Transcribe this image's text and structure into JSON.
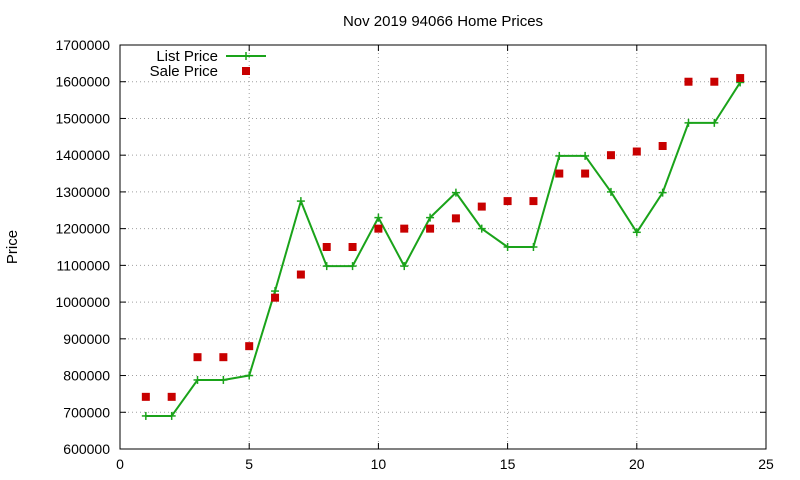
{
  "chart_data": {
    "type": "line",
    "title": "Nov 2019 94066 Home Prices",
    "xlabel": "",
    "ylabel": "Price",
    "xlim": [
      0,
      25
    ],
    "ylim": [
      600000,
      1700000
    ],
    "xticks": [
      0,
      5,
      10,
      15,
      20,
      25
    ],
    "yticks": [
      600000,
      700000,
      800000,
      900000,
      1000000,
      1100000,
      1200000,
      1300000,
      1400000,
      1500000,
      1600000,
      1700000
    ],
    "grid": true,
    "legend_position": "top-left",
    "series": [
      {
        "name": "List Price",
        "style": "line+cross",
        "color": "#1aa31a",
        "x": [
          1,
          2,
          3,
          4,
          5,
          6,
          7,
          8,
          9,
          10,
          11,
          12,
          13,
          14,
          15,
          16,
          17,
          18,
          19,
          20,
          21,
          22,
          23,
          24
        ],
        "values": [
          690000,
          690000,
          788000,
          788000,
          800000,
          1030000,
          1275000,
          1098000,
          1098000,
          1230000,
          1098000,
          1230000,
          1298000,
          1200000,
          1150000,
          1150000,
          1398000,
          1398000,
          1300000,
          1190000,
          1298000,
          1488000,
          1488000,
          1598000
        ]
      },
      {
        "name": "Sale Price",
        "style": "square-markers",
        "color": "#c80000",
        "x": [
          1,
          2,
          3,
          4,
          5,
          6,
          7,
          8,
          9,
          10,
          11,
          12,
          13,
          14,
          15,
          16,
          17,
          18,
          19,
          20,
          21,
          22,
          23,
          24
        ],
        "values": [
          742000,
          742000,
          850000,
          850000,
          880000,
          1012000,
          1075000,
          1150000,
          1150000,
          1200000,
          1200000,
          1200000,
          1228000,
          1260000,
          1275000,
          1275000,
          1350000,
          1350000,
          1400000,
          1410000,
          1425000,
          1600000,
          1600000,
          1610000
        ]
      }
    ]
  }
}
